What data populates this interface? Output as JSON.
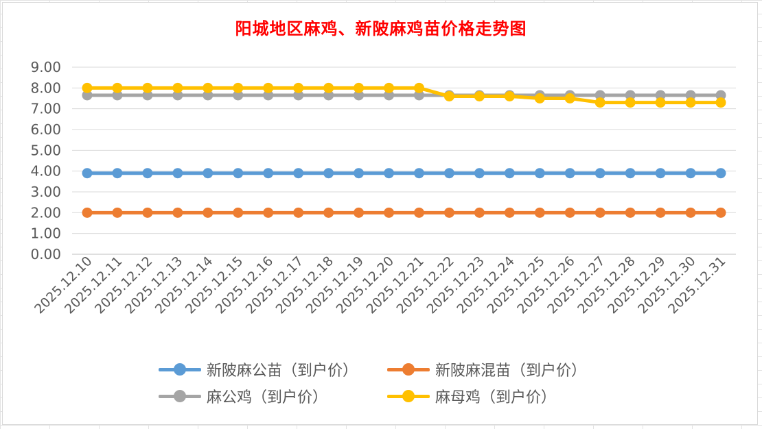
{
  "chart_data": {
    "type": "line",
    "title": "阳城地区麻鸡、新陂麻鸡苗价格走势图",
    "xlabel": "",
    "ylabel": "",
    "ylim": [
      0,
      9
    ],
    "yticks": [
      "0.00",
      "1.00",
      "2.00",
      "3.00",
      "4.00",
      "5.00",
      "6.00",
      "7.00",
      "8.00",
      "9.00"
    ],
    "categories": [
      "2025.12.10",
      "2025.12.11",
      "2025.12.12",
      "2025.12.13",
      "2025.12.14",
      "2025.12.15",
      "2025.12.16",
      "2025.12.17",
      "2025.12.18",
      "2025.12.19",
      "2025.12.20",
      "2025.12.21",
      "2025.12.22",
      "2025.12.23",
      "2025.12.24",
      "2025.12.25",
      "2025.12.26",
      "2025.12.27",
      "2025.12.28",
      "2025.12.29",
      "2025.12.30",
      "2025.12.31"
    ],
    "grid": true,
    "legend_position": "bottom",
    "series": [
      {
        "name": "新陂麻公苗（到户价）",
        "color": "#5b9bd5",
        "values": [
          3.9,
          3.9,
          3.9,
          3.9,
          3.9,
          3.9,
          3.9,
          3.9,
          3.9,
          3.9,
          3.9,
          3.9,
          3.9,
          3.9,
          3.9,
          3.9,
          3.9,
          3.9,
          3.9,
          3.9,
          3.9,
          3.9
        ]
      },
      {
        "name": "新陂麻混苗（到户价）",
        "color": "#ed7d31",
        "values": [
          2.0,
          2.0,
          2.0,
          2.0,
          2.0,
          2.0,
          2.0,
          2.0,
          2.0,
          2.0,
          2.0,
          2.0,
          2.0,
          2.0,
          2.0,
          2.0,
          2.0,
          2.0,
          2.0,
          2.0,
          2.0,
          2.0
        ]
      },
      {
        "name": "麻公鸡（到户价）",
        "color": "#a5a5a5",
        "values": [
          7.65,
          7.65,
          7.65,
          7.65,
          7.65,
          7.65,
          7.65,
          7.65,
          7.65,
          7.65,
          7.65,
          7.65,
          7.65,
          7.65,
          7.65,
          7.65,
          7.65,
          7.65,
          7.65,
          7.65,
          7.65,
          7.65
        ]
      },
      {
        "name": "麻母鸡（到户价）",
        "color": "#ffc000",
        "values": [
          8.0,
          8.0,
          8.0,
          8.0,
          8.0,
          8.0,
          8.0,
          8.0,
          8.0,
          8.0,
          8.0,
          8.0,
          7.6,
          7.6,
          7.6,
          7.5,
          7.5,
          7.3,
          7.3,
          7.3,
          7.3,
          7.3
        ]
      }
    ]
  }
}
